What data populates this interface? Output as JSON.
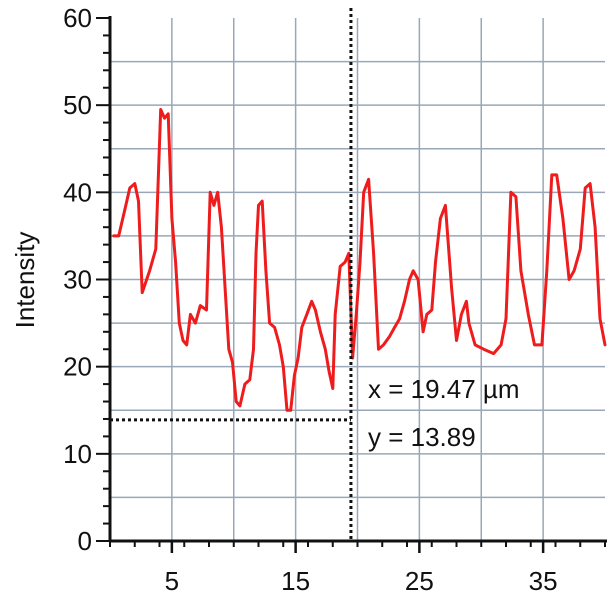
{
  "chart_data": {
    "type": "line",
    "title": "",
    "xlabel": "",
    "ylabel": "Intensity",
    "xlim": [
      0,
      40
    ],
    "ylim": [
      0,
      60
    ],
    "x_ticks": [
      5,
      15,
      25,
      35
    ],
    "y_ticks": [
      0,
      10,
      20,
      30,
      40,
      50,
      60
    ],
    "x_gridlines": [
      5,
      10,
      15,
      20,
      25,
      30,
      35
    ],
    "y_gridlines": [
      5,
      10,
      15,
      20,
      25,
      30,
      35,
      40,
      45,
      50,
      55
    ],
    "grid": true,
    "colors": {
      "line": "#ee1c1c",
      "grid": "#9aa7b8",
      "axis": "#111111"
    },
    "series": [
      {
        "values": [
          [
            0.3,
            35.0
          ],
          [
            0.7,
            35.0
          ],
          [
            1.2,
            38.0
          ],
          [
            1.6,
            40.5
          ],
          [
            2.0,
            41.0
          ],
          [
            2.3,
            39.0
          ],
          [
            2.6,
            28.5
          ],
          [
            3.2,
            31.0
          ],
          [
            3.7,
            33.5
          ],
          [
            4.1,
            49.5
          ],
          [
            4.4,
            48.5
          ],
          [
            4.7,
            49.0
          ],
          [
            5.0,
            37.0
          ],
          [
            5.3,
            32.0
          ],
          [
            5.6,
            25.0
          ],
          [
            5.9,
            23.0
          ],
          [
            6.2,
            22.5
          ],
          [
            6.5,
            26.0
          ],
          [
            6.9,
            25.0
          ],
          [
            7.3,
            27.0
          ],
          [
            7.8,
            26.5
          ],
          [
            8.1,
            40.0
          ],
          [
            8.4,
            38.5
          ],
          [
            8.7,
            40.0
          ],
          [
            9.0,
            36.0
          ],
          [
            9.3,
            29.0
          ],
          [
            9.6,
            22.0
          ],
          [
            9.9,
            20.5
          ],
          [
            10.2,
            16.0
          ],
          [
            10.5,
            15.5
          ],
          [
            10.9,
            18.0
          ],
          [
            11.3,
            18.5
          ],
          [
            11.6,
            22.0
          ],
          [
            11.8,
            33.0
          ],
          [
            12.0,
            38.5
          ],
          [
            12.3,
            39.0
          ],
          [
            12.6,
            31.0
          ],
          [
            12.9,
            25.0
          ],
          [
            13.3,
            24.5
          ],
          [
            13.7,
            22.5
          ],
          [
            14.0,
            20.0
          ],
          [
            14.3,
            15.0
          ],
          [
            14.6,
            15.0
          ],
          [
            14.9,
            19.0
          ],
          [
            15.2,
            21.0
          ],
          [
            15.5,
            24.5
          ],
          [
            15.9,
            26.0
          ],
          [
            16.3,
            27.5
          ],
          [
            16.6,
            26.5
          ],
          [
            17.0,
            24.0
          ],
          [
            17.4,
            22.0
          ],
          [
            17.7,
            19.5
          ],
          [
            18.0,
            17.5
          ],
          [
            18.2,
            26.0
          ],
          [
            18.6,
            31.5
          ],
          [
            19.0,
            32.0
          ],
          [
            19.3,
            33.0
          ],
          [
            19.6,
            21.0
          ],
          [
            19.9,
            26.0
          ],
          [
            20.2,
            32.0
          ],
          [
            20.5,
            40.0
          ],
          [
            20.9,
            41.5
          ],
          [
            21.3,
            33.0
          ],
          [
            21.7,
            22.0
          ],
          [
            22.1,
            22.5
          ],
          [
            22.6,
            23.5
          ],
          [
            23.0,
            24.5
          ],
          [
            23.4,
            25.5
          ],
          [
            23.8,
            27.5
          ],
          [
            24.2,
            30.0
          ],
          [
            24.5,
            31.0
          ],
          [
            24.9,
            30.0
          ],
          [
            25.3,
            24.0
          ],
          [
            25.6,
            26.0
          ],
          [
            26.0,
            26.5
          ],
          [
            26.3,
            32.0
          ],
          [
            26.7,
            37.0
          ],
          [
            27.1,
            38.5
          ],
          [
            27.6,
            29.0
          ],
          [
            28.0,
            23.0
          ],
          [
            28.4,
            26.0
          ],
          [
            28.8,
            27.5
          ],
          [
            29.0,
            25.0
          ],
          [
            29.5,
            22.5
          ],
          [
            30.2,
            22.0
          ],
          [
            31.0,
            21.5
          ],
          [
            31.6,
            22.5
          ],
          [
            32.0,
            25.5
          ],
          [
            32.4,
            40.0
          ],
          [
            32.8,
            39.5
          ],
          [
            33.2,
            31.0
          ],
          [
            33.8,
            26.0
          ],
          [
            34.3,
            22.5
          ],
          [
            34.9,
            22.5
          ],
          [
            35.3,
            31.0
          ],
          [
            35.7,
            42.0
          ],
          [
            36.1,
            42.0
          ],
          [
            36.6,
            37.0
          ],
          [
            37.1,
            30.0
          ],
          [
            37.5,
            31.0
          ],
          [
            38.0,
            33.5
          ],
          [
            38.4,
            40.5
          ],
          [
            38.8,
            41.0
          ],
          [
            39.2,
            36.0
          ],
          [
            39.6,
            25.5
          ],
          [
            40.0,
            22.5
          ]
        ]
      }
    ],
    "cursor": {
      "x": 19.47,
      "y": 13.89
    },
    "annotations": [
      "x = 19.47 µm",
      "y = 13.89"
    ]
  }
}
